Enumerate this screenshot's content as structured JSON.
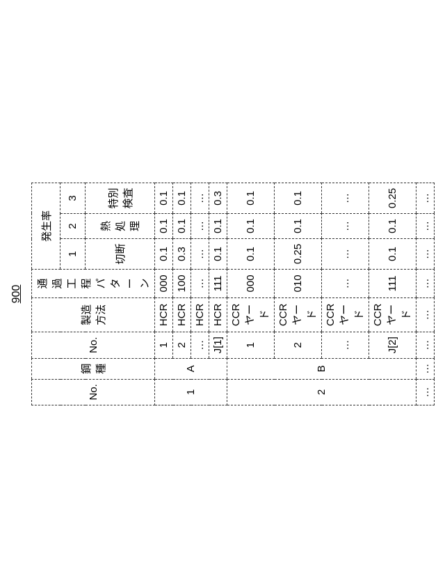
{
  "figure_label": "900",
  "headers": {
    "no1": "No.",
    "steel": "鋼種",
    "no2": "No.",
    "method": "製造方法",
    "pattern": "通過工程\nパターン",
    "rate_group": "発生率",
    "rate_cols": [
      "1",
      "2",
      "3"
    ],
    "rate_sub": [
      "切断",
      "熱処理",
      "特別検査"
    ]
  },
  "rows": [
    {
      "no1": "1",
      "steel": "A",
      "span": 4,
      "sub": [
        {
          "no2": "1",
          "method": "HCR",
          "pattern": "000",
          "r": [
            "0.1",
            "0.1",
            "0.1"
          ]
        },
        {
          "no2": "2",
          "method": "HCR",
          "pattern": "100",
          "r": [
            "0.3",
            "0.1",
            "0.1"
          ]
        },
        {
          "no2": "…",
          "method": "HCR",
          "pattern": "…",
          "r": [
            "…",
            "…",
            "…"
          ]
        },
        {
          "no2": "J[1]",
          "method": "HCR",
          "pattern": "111",
          "r": [
            "0.1",
            "0.1",
            "0.3"
          ]
        }
      ]
    },
    {
      "no1": "2",
      "steel": "B",
      "span": 4,
      "sub": [
        {
          "no2": "1",
          "method": "CCRヤード",
          "pattern": "000",
          "r": [
            "0.1",
            "0.1",
            "0.1"
          ]
        },
        {
          "no2": "2",
          "method": "CCRヤード",
          "pattern": "010",
          "r": [
            "0.25",
            "0.1",
            "0.1"
          ]
        },
        {
          "no2": "…",
          "method": "CCRヤード",
          "pattern": "…",
          "r": [
            "…",
            "…",
            "…"
          ]
        },
        {
          "no2": "J[2]",
          "method": "CCRヤード",
          "pattern": "111",
          "r": [
            "0.1",
            "0.1",
            "0.25"
          ]
        }
      ]
    },
    {
      "no1": "…",
      "steel": "…",
      "span": 1,
      "sub": [
        {
          "no2": "…",
          "method": "…",
          "pattern": "…",
          "r": [
            "…",
            "…",
            "…"
          ]
        }
      ]
    }
  ]
}
